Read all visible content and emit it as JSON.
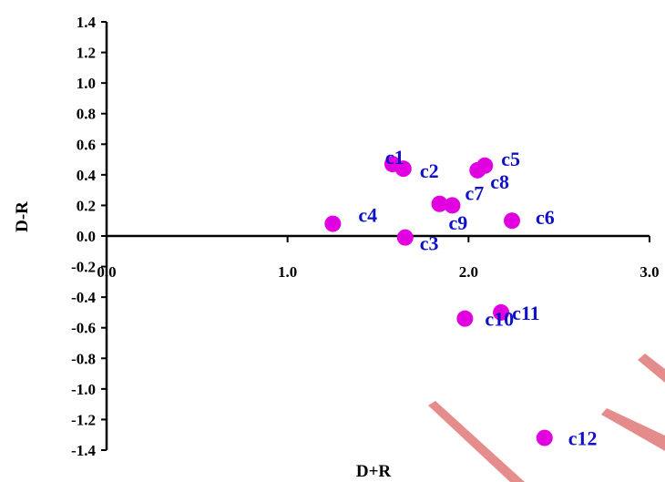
{
  "chart_data": {
    "type": "scatter",
    "title": "",
    "xlabel": "D+R",
    "ylabel": "D-R",
    "xlim": [
      0,
      3.0
    ],
    "ylim": [
      -1.4,
      1.4
    ],
    "x_ticks": [
      "0.0",
      "1.0",
      "2.0",
      "3.0"
    ],
    "y_ticks": [
      "1.4",
      "1.2",
      "1.0",
      "0.8",
      "0.6",
      "0.4",
      "0.2",
      "0.0",
      "-0.2",
      "-0.4",
      "-0.6",
      "-0.8",
      "-1.0",
      "-1.2",
      "-1.4"
    ],
    "grid": false,
    "legend": "none",
    "marker_color": "#e000e0",
    "label_color": "#1010c8",
    "points": [
      {
        "label": "c1",
        "x": 1.58,
        "y": 0.47
      },
      {
        "label": "c2",
        "x": 1.64,
        "y": 0.44
      },
      {
        "label": "c3",
        "x": 1.65,
        "y": -0.01
      },
      {
        "label": "c4",
        "x": 1.25,
        "y": 0.08
      },
      {
        "label": "c5",
        "x": 2.09,
        "y": 0.46
      },
      {
        "label": "c6",
        "x": 2.24,
        "y": 0.1
      },
      {
        "label": "c7",
        "x": 1.91,
        "y": 0.2
      },
      {
        "label": "c8",
        "x": 2.05,
        "y": 0.43
      },
      {
        "label": "c9",
        "x": 1.84,
        "y": 0.21
      },
      {
        "label": "c10",
        "x": 1.98,
        "y": -0.54
      },
      {
        "label": "c11",
        "x": 2.18,
        "y": -0.5
      },
      {
        "label": "c12",
        "x": 2.42,
        "y": -1.32
      }
    ]
  }
}
